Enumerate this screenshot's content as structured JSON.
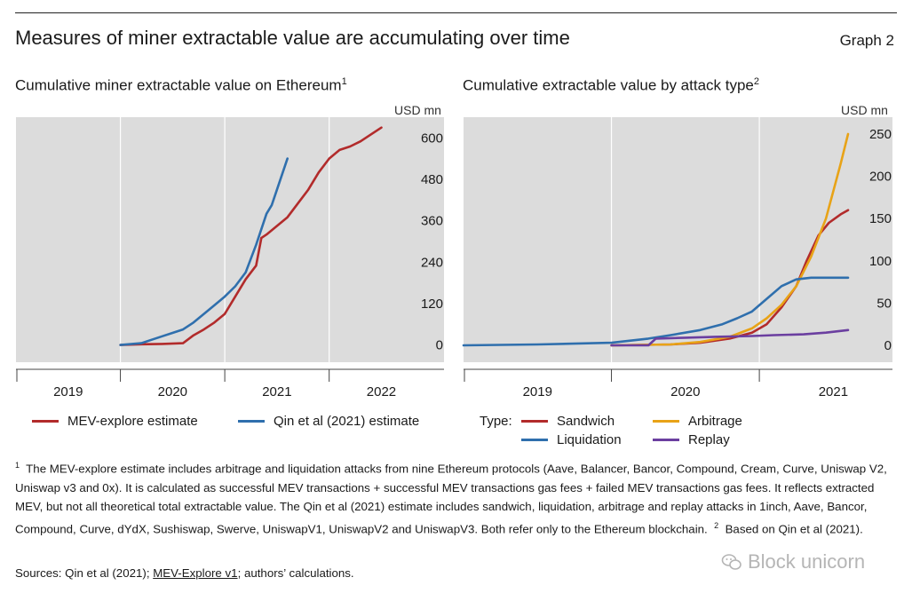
{
  "header": {
    "title": "Measures of miner extractable value are accumulating over time",
    "graph_number": "Graph 2"
  },
  "chart_data": [
    {
      "type": "line",
      "title": "Cumulative miner extractable value on Ethereum",
      "title_footnote": "1",
      "ylabel": "USD mn",
      "xlim": [
        2018.5,
        2022.6
      ],
      "ylim": [
        -50,
        660
      ],
      "yticks": [
        0,
        120,
        240,
        360,
        480,
        600
      ],
      "xtick_labels": [
        "2019",
        "2020",
        "2021",
        "2022"
      ],
      "xtick_positions": [
        2019.0,
        2020.0,
        2021.0,
        2022.0
      ],
      "year_boundaries": [
        2019.5,
        2020.5,
        2021.5
      ],
      "grid": "vertical",
      "series": [
        {
          "name": "MEV-explore estimate",
          "color": "#b22b2b",
          "x": [
            2019.5,
            2019.7,
            2019.9,
            2020.1,
            2020.2,
            2020.3,
            2020.4,
            2020.5,
            2020.6,
            2020.7,
            2020.8,
            2020.85,
            2020.9,
            2021.0,
            2021.1,
            2021.2,
            2021.3,
            2021.4,
            2021.5,
            2021.6,
            2021.7,
            2021.8,
            2021.9,
            2022.0
          ],
          "y": [
            0,
            2,
            3,
            5,
            28,
            45,
            65,
            90,
            140,
            190,
            230,
            310,
            320,
            345,
            370,
            410,
            450,
            500,
            540,
            565,
            575,
            590,
            610,
            630
          ]
        },
        {
          "name": "Qin et al (2021) estimate",
          "color": "#2f6fad",
          "x": [
            2019.5,
            2019.7,
            2019.8,
            2019.9,
            2020.0,
            2020.1,
            2020.2,
            2020.3,
            2020.4,
            2020.5,
            2020.6,
            2020.7,
            2020.8,
            2020.9,
            2020.95,
            2021.0,
            2021.1
          ],
          "y": [
            0,
            5,
            15,
            25,
            35,
            45,
            65,
            90,
            115,
            140,
            170,
            210,
            290,
            380,
            405,
            450,
            540
          ]
        }
      ]
    },
    {
      "type": "line",
      "title": "Cumulative extractable value by attack type",
      "title_footnote": "2",
      "ylabel": "USD mn",
      "xlim": [
        2018.5,
        2021.4
      ],
      "ylim": [
        -20,
        270
      ],
      "yticks": [
        0,
        50,
        100,
        150,
        200,
        250
      ],
      "xtick_labels": [
        "2019",
        "2020",
        "2021"
      ],
      "xtick_positions": [
        2019.0,
        2020.0,
        2021.0
      ],
      "year_boundaries": [
        2019.5,
        2020.5
      ],
      "grid": "vertical",
      "legend_title": "Type:",
      "series": [
        {
          "name": "Sandwich",
          "color": "#b22b2b",
          "x": [
            2019.5,
            2019.9,
            2020.1,
            2020.3,
            2020.45,
            2020.55,
            2020.65,
            2020.75,
            2020.82,
            2020.9,
            2020.97,
            2021.05,
            2021.1
          ],
          "y": [
            0,
            1,
            3,
            8,
            15,
            25,
            45,
            70,
            100,
            130,
            145,
            155,
            160
          ]
        },
        {
          "name": "Arbitrage",
          "color": "#e8a317",
          "x": [
            2019.5,
            2019.9,
            2020.1,
            2020.3,
            2020.45,
            2020.55,
            2020.65,
            2020.75,
            2020.85,
            2020.95,
            2021.05,
            2021.1
          ],
          "y": [
            0,
            1,
            4,
            10,
            20,
            32,
            48,
            70,
            105,
            150,
            215,
            250
          ]
        },
        {
          "name": "Liquidation",
          "color": "#2f6fad",
          "x": [
            2018.5,
            2019.0,
            2019.5,
            2019.75,
            2019.9,
            2020.1,
            2020.25,
            2020.35,
            2020.45,
            2020.55,
            2020.65,
            2020.75,
            2020.85,
            2021.0,
            2021.1
          ],
          "y": [
            0,
            1,
            3,
            8,
            12,
            18,
            25,
            32,
            40,
            55,
            70,
            78,
            80,
            80,
            80
          ]
        },
        {
          "name": "Replay",
          "color": "#6b3fa0",
          "x": [
            2019.5,
            2019.75,
            2019.8,
            2020.0,
            2020.2,
            2020.45,
            2020.6,
            2020.8,
            2020.95,
            2021.1
          ],
          "y": [
            0,
            0,
            8,
            9,
            10,
            11,
            12,
            13,
            15,
            18
          ]
        }
      ]
    }
  ],
  "footnotes": {
    "note1_marker": "1",
    "note1_text": "The MEV-explore estimate includes arbitrage and liquidation attacks from nine Ethereum protocols (Aave, Balancer, Bancor, Compound, Cream, Curve, Uniswap V2, Uniswap v3 and 0x). It is calculated as successful MEV transactions + successful MEV transactions gas fees + failed MEV transactions gas fees. It reflects extracted MEV, but not all theoretical total extractable value. The Qin et al (2021) estimate includes sandwich, liquidation, arbitrage and replay attacks in 1inch, Aave, Bancor, Compound, Curve, dYdX, Sushiswap, Swerve, UniswapV1, UniswapV2 and UniswapV3. Both refer only to the Ethereum blockchain.",
    "note2_marker": "2",
    "note2_text": "Based on Qin et al (2021)."
  },
  "sources": {
    "prefix": "Sources: Qin et al (2021); ",
    "link": "MEV-Explore v1",
    "suffix": "; authors’ calculations."
  },
  "watermark": {
    "text": "Block unicorn",
    "icon": "wechat-icon"
  }
}
